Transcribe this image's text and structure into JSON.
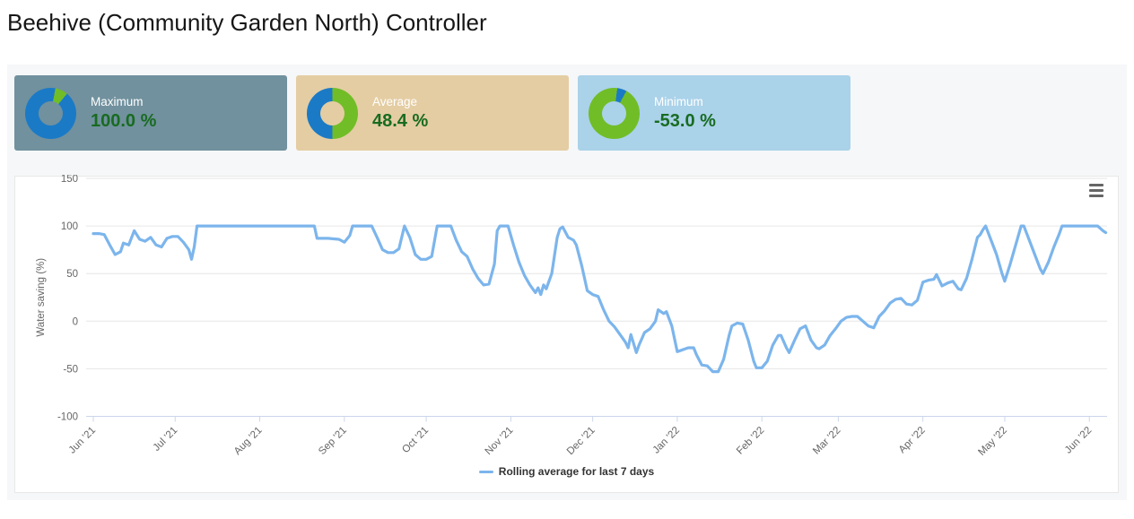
{
  "page": {
    "title": "Beehive (Community Garden North) Controller"
  },
  "palette": {
    "donut_blue": "#1b7ac6",
    "donut_green": "#71bd27",
    "line_blue": "#7cb5ec",
    "value_green": "#186b21",
    "axis_text": "#666666",
    "grid_line": "#e6e6e6",
    "axis_line": "#ccd6eb",
    "legend_text": "#333333"
  },
  "stat_cards": [
    {
      "label": "Maximum",
      "value": "100.0 %",
      "bg": "#71919e",
      "donut_icon": "donut-chart-icon",
      "donut": [
        {
          "color": "blue",
          "from": 0,
          "to": 3
        },
        {
          "color": "green",
          "from": 3,
          "to": 11
        },
        {
          "color": "blue",
          "from": 11,
          "to": 100
        }
      ]
    },
    {
      "label": "Average",
      "value": "48.4 %",
      "bg": "#e4cda3",
      "donut_icon": "donut-chart-icon",
      "donut": [
        {
          "color": "green",
          "from": 0,
          "to": 50
        },
        {
          "color": "blue",
          "from": 50,
          "to": 100
        }
      ]
    },
    {
      "label": "Minimum",
      "value": "-53.0 %",
      "bg": "#aad2e9",
      "donut_icon": "donut-chart-icon",
      "donut": [
        {
          "color": "green",
          "from": 0,
          "to": 2
        },
        {
          "color": "blue",
          "from": 2,
          "to": 8
        },
        {
          "color": "green",
          "from": 8,
          "to": 100
        }
      ]
    }
  ],
  "chart_menu": {
    "icon": "hamburger-icon"
  },
  "chart_data": {
    "type": "line",
    "title": "",
    "ylabel": "Water saving (%)",
    "xlabel": "",
    "ylim": [
      -100,
      150
    ],
    "yticks": [
      150,
      100,
      50,
      0,
      -50,
      -100
    ],
    "grid": true,
    "x_unit": "days since 2021-06-01",
    "xlim": [
      0,
      371.5
    ],
    "xticks": {
      "days": [
        0,
        30,
        61,
        92,
        122,
        153,
        183,
        214,
        245,
        273,
        304,
        334,
        365
      ],
      "labels": [
        "Jun '21",
        "Jul '21",
        "Aug '21",
        "Sep '21",
        "Oct '21",
        "Nov '21",
        "Dec '21",
        "Jan '22",
        "Feb '22",
        "Mar '22",
        "Apr '22",
        "May '22",
        "Jun '22"
      ]
    },
    "legend_position": "bottom-center",
    "legend": [
      {
        "label": "Rolling average for last 7 days",
        "color": "#7cb5ec"
      }
    ],
    "series": [
      {
        "name": "Rolling average for last 7 days",
        "color": "#7cb5ec",
        "points": [
          [
            0,
            92
          ],
          [
            2,
            92
          ],
          [
            4,
            91
          ],
          [
            6,
            80
          ],
          [
            8,
            70
          ],
          [
            10,
            73
          ],
          [
            11,
            82
          ],
          [
            13,
            80
          ],
          [
            15,
            95
          ],
          [
            17,
            86
          ],
          [
            19,
            84
          ],
          [
            21,
            88
          ],
          [
            23,
            80
          ],
          [
            25,
            78
          ],
          [
            27,
            87
          ],
          [
            29,
            89
          ],
          [
            31,
            89
          ],
          [
            33,
            83
          ],
          [
            35,
            75
          ],
          [
            36,
            65
          ],
          [
            37,
            78
          ],
          [
            38,
            100
          ],
          [
            50,
            100
          ],
          [
            60,
            100
          ],
          [
            70,
            100
          ],
          [
            81,
            100
          ],
          [
            82,
            87
          ],
          [
            86,
            87
          ],
          [
            90,
            86
          ],
          [
            92,
            83
          ],
          [
            94,
            90
          ],
          [
            95,
            100
          ],
          [
            102,
            100
          ],
          [
            104,
            88
          ],
          [
            106,
            75
          ],
          [
            108,
            72
          ],
          [
            110,
            72
          ],
          [
            112,
            76
          ],
          [
            114,
            100
          ],
          [
            116,
            88
          ],
          [
            118,
            70
          ],
          [
            120,
            65
          ],
          [
            122,
            65
          ],
          [
            124,
            68
          ],
          [
            126,
            100
          ],
          [
            131,
            100
          ],
          [
            133,
            85
          ],
          [
            135,
            73
          ],
          [
            137,
            68
          ],
          [
            139,
            55
          ],
          [
            141,
            45
          ],
          [
            143,
            38
          ],
          [
            145,
            39
          ],
          [
            147,
            60
          ],
          [
            148,
            95
          ],
          [
            149,
            100
          ],
          [
            152,
            100
          ],
          [
            154,
            80
          ],
          [
            156,
            62
          ],
          [
            158,
            48
          ],
          [
            160,
            38
          ],
          [
            162,
            30
          ],
          [
            163,
            35
          ],
          [
            164,
            28
          ],
          [
            165,
            38
          ],
          [
            166,
            34
          ],
          [
            168,
            50
          ],
          [
            170,
            88
          ],
          [
            171,
            97
          ],
          [
            172,
            99
          ],
          [
            174,
            88
          ],
          [
            176,
            85
          ],
          [
            177,
            80
          ],
          [
            179,
            58
          ],
          [
            181,
            32
          ],
          [
            183,
            28
          ],
          [
            185,
            26
          ],
          [
            187,
            12
          ],
          [
            189,
            0
          ],
          [
            191,
            -6
          ],
          [
            193,
            -14
          ],
          [
            195,
            -22
          ],
          [
            196,
            -28
          ],
          [
            197,
            -14
          ],
          [
            199,
            -33
          ],
          [
            200,
            -25
          ],
          [
            202,
            -12
          ],
          [
            204,
            -8
          ],
          [
            206,
            0
          ],
          [
            207,
            12
          ],
          [
            209,
            8
          ],
          [
            210,
            10
          ],
          [
            212,
            -5
          ],
          [
            214,
            -32
          ],
          [
            216,
            -30
          ],
          [
            218,
            -28
          ],
          [
            220,
            -28
          ],
          [
            221,
            -35
          ],
          [
            223,
            -46
          ],
          [
            225,
            -47
          ],
          [
            227,
            -53
          ],
          [
            229,
            -53
          ],
          [
            231,
            -40
          ],
          [
            233,
            -15
          ],
          [
            234,
            -5
          ],
          [
            236,
            -2
          ],
          [
            238,
            -3
          ],
          [
            240,
            -20
          ],
          [
            242,
            -42
          ],
          [
            243,
            -49
          ],
          [
            245,
            -49
          ],
          [
            247,
            -42
          ],
          [
            249,
            -25
          ],
          [
            251,
            -15
          ],
          [
            252,
            -15
          ],
          [
            254,
            -28
          ],
          [
            255,
            -33
          ],
          [
            257,
            -20
          ],
          [
            259,
            -8
          ],
          [
            261,
            -5
          ],
          [
            263,
            -20
          ],
          [
            265,
            -28
          ],
          [
            266,
            -29
          ],
          [
            268,
            -25
          ],
          [
            270,
            -15
          ],
          [
            272,
            -8
          ],
          [
            274,
            0
          ],
          [
            276,
            4
          ],
          [
            278,
            5
          ],
          [
            280,
            5
          ],
          [
            282,
            0
          ],
          [
            284,
            -5
          ],
          [
            286,
            -7
          ],
          [
            288,
            5
          ],
          [
            290,
            11
          ],
          [
            292,
            19
          ],
          [
            294,
            23
          ],
          [
            296,
            24
          ],
          [
            298,
            18
          ],
          [
            300,
            17
          ],
          [
            302,
            22
          ],
          [
            304,
            41
          ],
          [
            306,
            43
          ],
          [
            308,
            44
          ],
          [
            309,
            49
          ],
          [
            311,
            37
          ],
          [
            313,
            40
          ],
          [
            315,
            42
          ],
          [
            317,
            34
          ],
          [
            318,
            33
          ],
          [
            320,
            45
          ],
          [
            322,
            65
          ],
          [
            324,
            88
          ],
          [
            325,
            91
          ],
          [
            326,
            96
          ],
          [
            327,
            100
          ],
          [
            329,
            85
          ],
          [
            331,
            70
          ],
          [
            333,
            50
          ],
          [
            334,
            42
          ],
          [
            336,
            60
          ],
          [
            338,
            80
          ],
          [
            340,
            100
          ],
          [
            341,
            100
          ],
          [
            343,
            85
          ],
          [
            345,
            70
          ],
          [
            347,
            55
          ],
          [
            348,
            50
          ],
          [
            350,
            62
          ],
          [
            352,
            78
          ],
          [
            354,
            92
          ],
          [
            355,
            100
          ],
          [
            360,
            100
          ],
          [
            365,
            100
          ],
          [
            368,
            100
          ],
          [
            370,
            95
          ],
          [
            371,
            93
          ]
        ]
      }
    ]
  }
}
